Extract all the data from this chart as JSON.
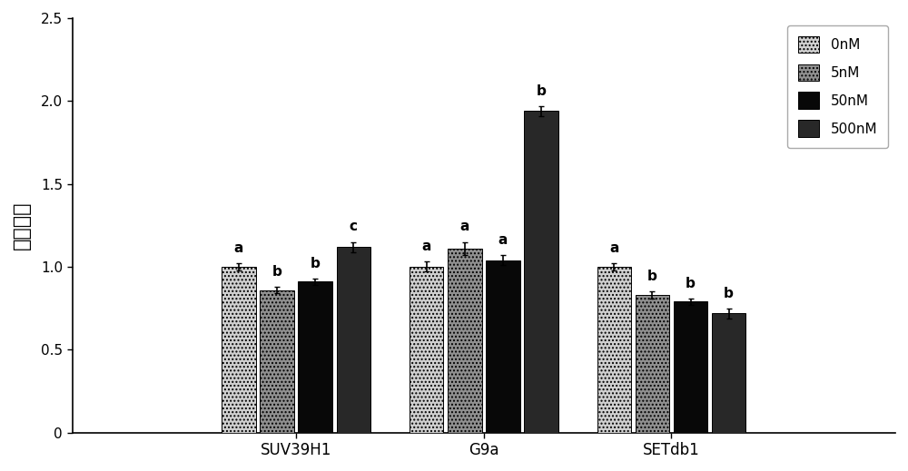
{
  "groups": [
    "SUV39H1",
    "G9a",
    "SETdb1"
  ],
  "series_labels": [
    "0nM",
    "5nM",
    "50nM",
    "500nM"
  ],
  "bar_colors": [
    "#d0d0d0",
    "#909090",
    "#080808",
    "#282828"
  ],
  "hatch_patterns": [
    "....",
    "....",
    "",
    ""
  ],
  "values": {
    "SUV39H1": [
      1.0,
      0.86,
      0.91,
      1.12
    ],
    "G9a": [
      1.0,
      1.11,
      1.04,
      1.94
    ],
    "SETdb1": [
      1.0,
      0.83,
      0.79,
      0.72
    ]
  },
  "errors": {
    "SUV39H1": [
      0.02,
      0.02,
      0.02,
      0.03
    ],
    "G9a": [
      0.03,
      0.04,
      0.03,
      0.03
    ],
    "SETdb1": [
      0.02,
      0.02,
      0.02,
      0.03
    ]
  },
  "sig_labels": {
    "SUV39H1": [
      "a",
      "b",
      "b",
      "c"
    ],
    "G9a": [
      "a",
      "a",
      "a",
      "b"
    ],
    "SETdb1": [
      "a",
      "b",
      "b",
      "b"
    ]
  },
  "ylabel": "相对表达",
  "ylim": [
    0,
    2.5
  ],
  "yticks": [
    0,
    0.5,
    1.0,
    1.5,
    2.0,
    2.5
  ],
  "bar_width": 0.12,
  "group_centers": [
    0.22,
    0.88,
    1.54
  ],
  "legend_colors": [
    "#d0d0d0",
    "#909090",
    "#080808",
    "#282828"
  ],
  "legend_hatch": [
    "....",
    "....",
    "",
    ""
  ],
  "bg_color": "#ffffff"
}
